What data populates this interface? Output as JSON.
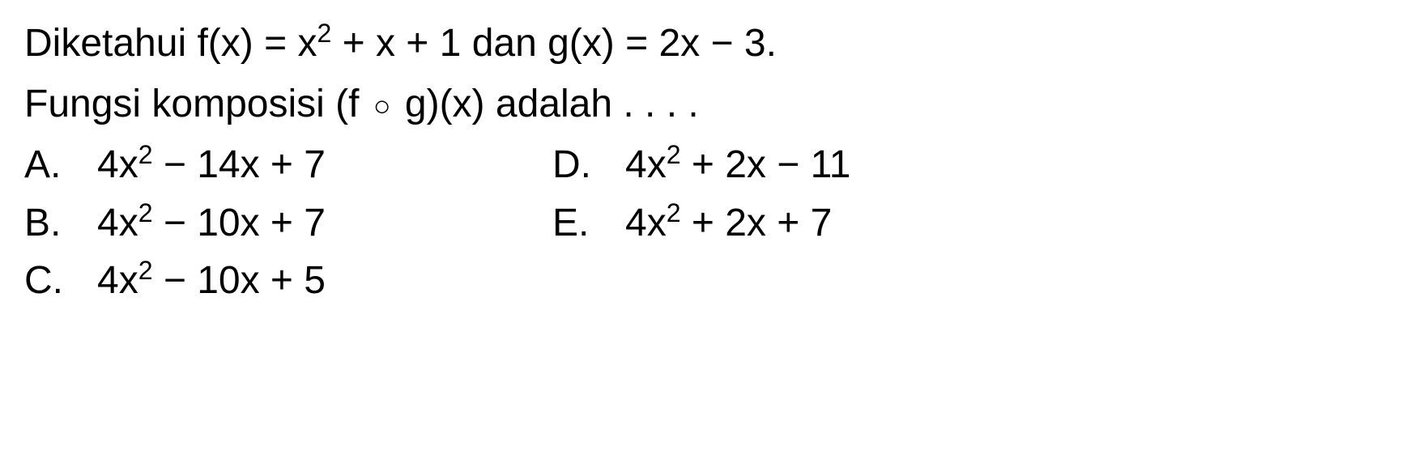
{
  "question": {
    "line1_prefix": "Diketahui f(x) = x",
    "line1_exp": "2",
    "line1_suffix": " + x + 1 dan g(x) = 2x − 3.",
    "line2_prefix": "Fungsi komposisi (f ",
    "line2_compose": "○",
    "line2_suffix": " g)(x) adalah . . . ."
  },
  "options": {
    "A": {
      "letter": "A.",
      "prefix": "4x",
      "exp": "2",
      "suffix": " − 14x + 7"
    },
    "B": {
      "letter": "B.",
      "prefix": "4x",
      "exp": "2",
      "suffix": " − 10x + 7"
    },
    "C": {
      "letter": "C.",
      "prefix": "4x",
      "exp": "2",
      "suffix": " − 10x + 5"
    },
    "D": {
      "letter": "D.",
      "prefix": "4x",
      "exp": "2",
      "suffix": " + 2x − 11"
    },
    "E": {
      "letter": "E.",
      "prefix": "4x",
      "exp": "2",
      "suffix": " + 2x + 7"
    }
  },
  "styling": {
    "font_size_main": 48,
    "font_size_sup": 32,
    "text_color": "#000000",
    "background_color": "#ffffff",
    "font_family": "Arial"
  }
}
